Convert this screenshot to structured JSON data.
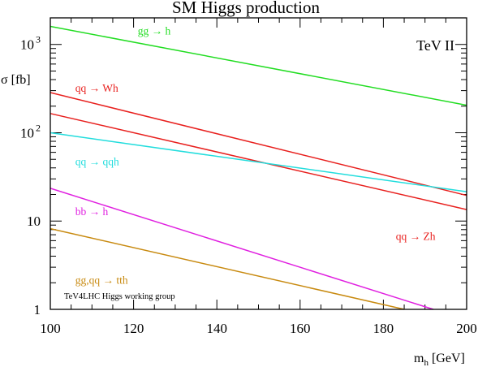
{
  "chart_data": {
    "type": "line",
    "title": "SM Higgs production",
    "xlabel_main": "m",
    "xlabel_sub": "h",
    "xlabel_unit": "[GeV]",
    "ylabel": "σ [fb]",
    "xlim": [
      100,
      200
    ],
    "ylim": [
      1,
      2000
    ],
    "yscale": "log",
    "grid": false,
    "x_ticks": [
      {
        "value": 100,
        "label": "100"
      },
      {
        "value": 120,
        "label": "120"
      },
      {
        "value": 140,
        "label": "140"
      },
      {
        "value": 160,
        "label": "160"
      },
      {
        "value": 180,
        "label": "180"
      },
      {
        "value": 200,
        "label": "200"
      }
    ],
    "y_ticks": [
      {
        "value": 1,
        "label": "1",
        "exp": ""
      },
      {
        "value": 10,
        "label": "10",
        "exp": ""
      },
      {
        "value": 100,
        "label": "10",
        "exp": "2"
      },
      {
        "value": 1000,
        "label": "10",
        "exp": "3"
      }
    ],
    "annotations": {
      "top_right": "TeV II",
      "bottom_left": "TeV4LHC Higgs working group"
    },
    "series": [
      {
        "label": "gg → h",
        "color": "#22dd22",
        "x": [
          100,
          200
        ],
        "y": [
          1600,
          205
        ],
        "label_value": [
          121,
          1290
        ]
      },
      {
        "label": "qq → Wh",
        "color": "#e8201e",
        "x": [
          100,
          200
        ],
        "y": [
          285,
          19.5
        ],
        "label_value": [
          106,
          290
        ]
      },
      {
        "label": "qq → Zh",
        "color": "#e8201e",
        "x": [
          100,
          200
        ],
        "y": [
          165,
          13.5
        ],
        "label_value": [
          183,
          6.1
        ]
      },
      {
        "label": "qq → qqh",
        "color": "#22dddd",
        "x": [
          100,
          200
        ],
        "y": [
          100,
          21.5
        ],
        "label_value": [
          106,
          43
        ]
      },
      {
        "label": "bb → h",
        "color": "#e020e0",
        "x": [
          100,
          192
        ],
        "y": [
          23.5,
          1
        ],
        "label_value": [
          106,
          11.6
        ]
      },
      {
        "label": "gg,qq → tth",
        "color": "#c88a10",
        "x": [
          100,
          185
        ],
        "y": [
          8.2,
          1
        ],
        "label_value": [
          106,
          1.95
        ]
      }
    ]
  }
}
